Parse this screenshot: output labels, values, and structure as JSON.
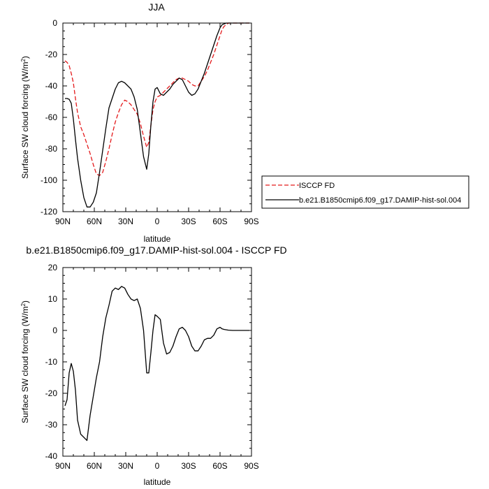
{
  "chart_data": [
    {
      "type": "line",
      "title": "JJA",
      "xlabel": "latitude",
      "ylabel": "Surface SW cloud forcing (W/m",
      "ylabel_superscript": "2",
      "ylabel_suffix": ")",
      "xlim": [
        90,
        -90
      ],
      "ylim": [
        -120,
        0
      ],
      "xticks": [
        90,
        60,
        30,
        0,
        -30,
        -60,
        -90
      ],
      "xtick_labels": [
        "90N",
        "60N",
        "30N",
        "0",
        "30S",
        "60S",
        "90S"
      ],
      "yticks": [
        0,
        -20,
        -40,
        -60,
        -80,
        -100,
        -120
      ],
      "ytick_labels": [
        "0",
        "-20",
        "-40",
        "-60",
        "-80",
        "-100",
        "-120"
      ],
      "legend_position": "right-bottom-outside",
      "series": [
        {
          "name": "ISCCP FD",
          "color": "#e41a1c",
          "style": "dashed",
          "x": [
            88,
            86,
            84,
            82,
            80,
            78,
            76,
            73,
            70,
            67,
            64,
            61,
            58,
            55,
            52,
            49,
            46,
            43,
            40,
            37,
            34,
            31,
            28,
            25,
            22,
            19,
            16,
            13,
            10,
            8,
            6,
            4,
            2,
            0,
            -3,
            -6,
            -9,
            -12,
            -15,
            -18,
            -21,
            -24,
            -27,
            -30,
            -33,
            -36,
            -39,
            -42,
            -45,
            -48,
            -51,
            -54,
            -57,
            -60,
            -62,
            -64,
            -66,
            -68,
            -72,
            -78,
            -84,
            -88
          ],
          "y": [
            -24,
            -25,
            -27,
            -32,
            -38,
            -48,
            -57,
            -66,
            -71,
            -77,
            -83,
            -90,
            -96,
            -97,
            -95,
            -88,
            -80,
            -71,
            -63,
            -57,
            -52,
            -49,
            -50,
            -52,
            -55,
            -58,
            -64,
            -72,
            -79,
            -76,
            -65,
            -55,
            -50,
            -47,
            -46,
            -44,
            -42,
            -40,
            -38,
            -36,
            -35,
            -35,
            -36,
            -37,
            -39,
            -40,
            -40,
            -37,
            -34,
            -30,
            -25,
            -20,
            -14,
            -8,
            -4,
            -2,
            -1,
            0,
            0,
            0,
            0,
            0
          ]
        },
        {
          "name": "b.e21.B1850cmip6.f09_g17.DAMIP-hist-sol.004",
          "color": "#000000",
          "style": "solid",
          "x": [
            88,
            86,
            84,
            82,
            80,
            78,
            76,
            73,
            70,
            67,
            64,
            61,
            58,
            55,
            52,
            49,
            46,
            43,
            40,
            37,
            34,
            31,
            28,
            25,
            22,
            19,
            16,
            13,
            10,
            8,
            6,
            4,
            2,
            0,
            -3,
            -6,
            -9,
            -12,
            -15,
            -18,
            -21,
            -24,
            -27,
            -30,
            -33,
            -36,
            -39,
            -42,
            -45,
            -48,
            -51,
            -54,
            -57,
            -60,
            -62,
            -64,
            -66,
            -68,
            -72,
            -78,
            -84,
            -88
          ],
          "y": [
            -48,
            -48,
            -48.5,
            -51,
            -61,
            -74,
            -86,
            -100,
            -111,
            -117,
            -117,
            -114,
            -108,
            -95,
            -81,
            -67,
            -54,
            -48,
            -42,
            -38,
            -37,
            -38,
            -40,
            -42,
            -47,
            -55,
            -70,
            -85,
            -93,
            -83,
            -65,
            -50,
            -42,
            -41,
            -45,
            -46,
            -44,
            -42,
            -39,
            -37,
            -35,
            -36,
            -40,
            -44,
            -46,
            -45,
            -42,
            -37,
            -32,
            -26,
            -20,
            -14,
            -8,
            -3,
            -1,
            -0.5,
            0,
            0,
            0,
            0,
            0,
            0
          ]
        }
      ]
    },
    {
      "type": "line",
      "title": "b.e21.B1850cmip6.f09_g17.DAMIP-hist-sol.004 - ISCCP FD",
      "xlabel": "latitude",
      "ylabel": "Surface SW cloud forcing (W/m",
      "ylabel_superscript": "2",
      "ylabel_suffix": ")",
      "xlim": [
        90,
        -90
      ],
      "ylim": [
        -40,
        20
      ],
      "xticks": [
        90,
        60,
        30,
        0,
        -30,
        -60,
        -90
      ],
      "xtick_labels": [
        "90N",
        "60N",
        "30N",
        "0",
        "30S",
        "60S",
        "90S"
      ],
      "yticks": [
        20,
        10,
        0,
        -10,
        -20,
        -30,
        -40
      ],
      "ytick_labels": [
        "20",
        "10",
        "0",
        "-10",
        "-20",
        "-30",
        "-40"
      ],
      "series": [
        {
          "color": "#000000",
          "style": "solid",
          "x": [
            88,
            86,
            84,
            82,
            80,
            78,
            76,
            73,
            70,
            67,
            64,
            61,
            58,
            55,
            52,
            49,
            46,
            43,
            40,
            37,
            34,
            31,
            28,
            25,
            22,
            19,
            16,
            13,
            10,
            8,
            6,
            4,
            2,
            0,
            -3,
            -6,
            -9,
            -12,
            -15,
            -18,
            -21,
            -24,
            -27,
            -30,
            -33,
            -36,
            -39,
            -42,
            -45,
            -48,
            -51,
            -54,
            -57,
            -60,
            -62,
            -64,
            -66,
            -68,
            -72,
            -78,
            -84,
            -88
          ],
          "y": [
            -24,
            -22,
            -13.5,
            -10.5,
            -13,
            -19,
            -28.5,
            -33,
            -34,
            -35,
            -27,
            -21,
            -15,
            -10,
            -2,
            4,
            8,
            12.5,
            13.5,
            13,
            14,
            13.5,
            11.5,
            10,
            9.5,
            10,
            7,
            0,
            -13.5,
            -13.5,
            -7,
            0,
            5,
            4.5,
            3.5,
            -4,
            -7.5,
            -7,
            -5,
            -2,
            0.5,
            1,
            0,
            -2,
            -5,
            -6.5,
            -6.5,
            -5,
            -3,
            -2.5,
            -2.5,
            -1.5,
            0.5,
            1,
            0.5,
            0.3,
            0.2,
            0.1,
            0,
            0,
            0,
            0
          ]
        }
      ]
    }
  ]
}
